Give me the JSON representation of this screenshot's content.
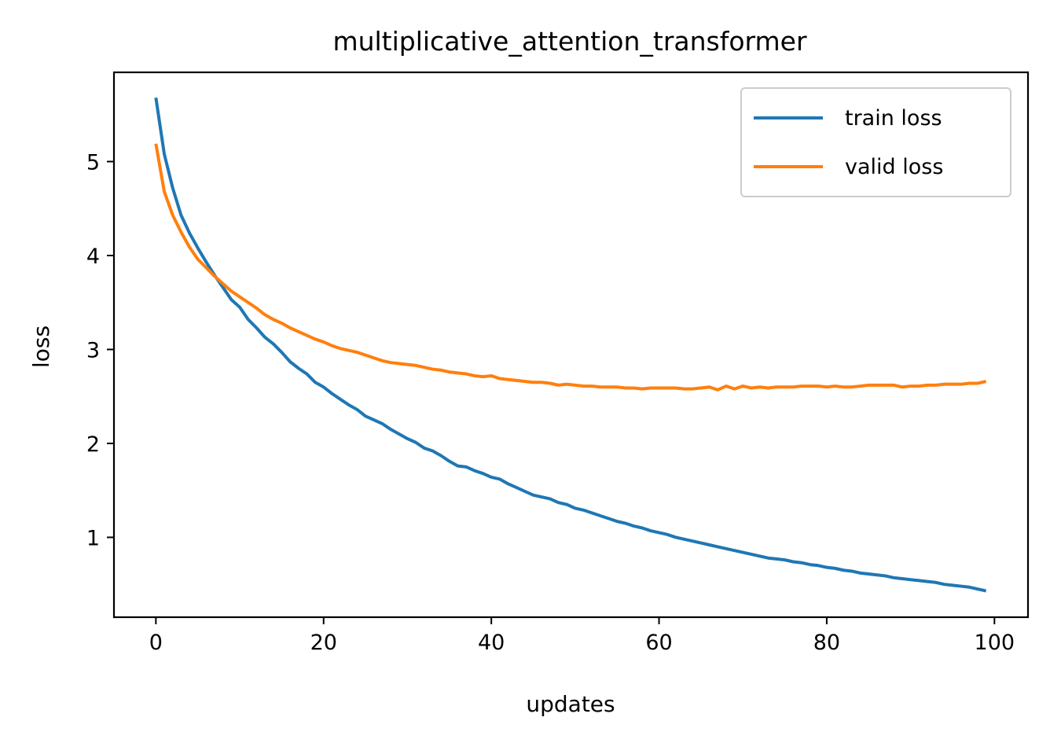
{
  "chart_data": {
    "type": "line",
    "title": "multiplicative_attention_transformer",
    "xlabel": "updates",
    "ylabel": "loss",
    "xlim": [
      -5,
      104
    ],
    "ylim": [
      0.15,
      5.95
    ],
    "xticks": [
      0,
      20,
      40,
      60,
      80,
      100
    ],
    "yticks": [
      1,
      2,
      3,
      4,
      5
    ],
    "xtick_labels": [
      "0",
      "20",
      "40",
      "60",
      "80",
      "100"
    ],
    "ytick_labels": [
      "1",
      "2",
      "3",
      "4",
      "5"
    ],
    "grid": false,
    "legend_position": "top-right",
    "series": [
      {
        "name": "train loss",
        "color": "#1f77b4",
        "values": [
          5.68,
          5.08,
          4.72,
          4.43,
          4.24,
          4.08,
          3.93,
          3.79,
          3.66,
          3.53,
          3.45,
          3.32,
          3.23,
          3.13,
          3.06,
          2.97,
          2.87,
          2.8,
          2.74,
          2.65,
          2.6,
          2.53,
          2.47,
          2.41,
          2.36,
          2.29,
          2.25,
          2.21,
          2.15,
          2.1,
          2.05,
          2.01,
          1.95,
          1.92,
          1.87,
          1.81,
          1.76,
          1.75,
          1.71,
          1.68,
          1.64,
          1.62,
          1.57,
          1.53,
          1.49,
          1.45,
          1.43,
          1.41,
          1.37,
          1.35,
          1.31,
          1.29,
          1.26,
          1.23,
          1.2,
          1.17,
          1.15,
          1.12,
          1.1,
          1.07,
          1.05,
          1.03,
          1.0,
          0.98,
          0.96,
          0.94,
          0.92,
          0.9,
          0.88,
          0.86,
          0.84,
          0.82,
          0.8,
          0.78,
          0.77,
          0.76,
          0.74,
          0.73,
          0.71,
          0.7,
          0.68,
          0.67,
          0.65,
          0.64,
          0.62,
          0.61,
          0.6,
          0.59,
          0.57,
          0.56,
          0.55,
          0.54,
          0.53,
          0.52,
          0.5,
          0.49,
          0.48,
          0.47,
          0.45,
          0.43
        ]
      },
      {
        "name": "valid loss",
        "color": "#ff7f0e",
        "values": [
          5.19,
          4.68,
          4.43,
          4.25,
          4.09,
          3.96,
          3.87,
          3.78,
          3.7,
          3.62,
          3.56,
          3.5,
          3.44,
          3.37,
          3.32,
          3.28,
          3.23,
          3.19,
          3.15,
          3.11,
          3.08,
          3.04,
          3.01,
          2.99,
          2.97,
          2.94,
          2.91,
          2.88,
          2.86,
          2.85,
          2.84,
          2.83,
          2.81,
          2.79,
          2.78,
          2.76,
          2.75,
          2.74,
          2.72,
          2.71,
          2.72,
          2.69,
          2.68,
          2.67,
          2.66,
          2.65,
          2.65,
          2.64,
          2.62,
          2.63,
          2.62,
          2.61,
          2.61,
          2.6,
          2.6,
          2.6,
          2.59,
          2.59,
          2.58,
          2.59,
          2.59,
          2.59,
          2.59,
          2.58,
          2.58,
          2.59,
          2.6,
          2.57,
          2.61,
          2.58,
          2.61,
          2.59,
          2.6,
          2.59,
          2.6,
          2.6,
          2.6,
          2.61,
          2.61,
          2.61,
          2.6,
          2.61,
          2.6,
          2.6,
          2.61,
          2.62,
          2.62,
          2.62,
          2.62,
          2.6,
          2.61,
          2.61,
          2.62,
          2.62,
          2.63,
          2.63,
          2.63,
          2.64,
          2.64,
          2.66
        ]
      }
    ]
  }
}
